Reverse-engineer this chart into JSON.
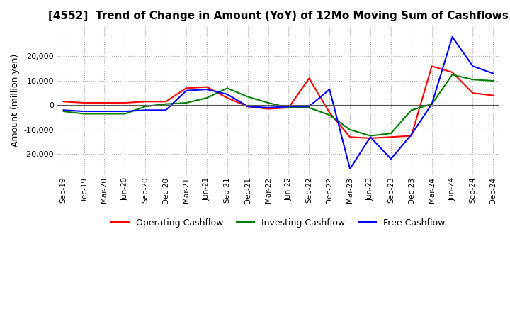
{
  "title": "[4552]  Trend of Change in Amount (YoY) of 12Mo Moving Sum of Cashflows",
  "ylabel": "Amount (million yen)",
  "x_labels": [
    "Sep-19",
    "Dec-19",
    "Mar-20",
    "Jun-20",
    "Sep-20",
    "Dec-20",
    "Mar-21",
    "Jun-21",
    "Sep-21",
    "Dec-21",
    "Mar-22",
    "Jun-22",
    "Sep-22",
    "Dec-22",
    "Mar-23",
    "Jun-23",
    "Sep-23",
    "Dec-23",
    "Mar-24",
    "Jun-24",
    "Sep-24",
    "Dec-24"
  ],
  "operating": [
    1500,
    1000,
    1000,
    1000,
    1500,
    1500,
    7000,
    7500,
    3000,
    -500,
    -1500,
    -1000,
    11000,
    -3000,
    -13000,
    -13500,
    -13000,
    -12500,
    16000,
    13500,
    5000,
    4000
  ],
  "investing": [
    -2500,
    -3500,
    -3500,
    -3500,
    -500,
    500,
    1000,
    3000,
    7000,
    3500,
    1000,
    -1000,
    -1000,
    -4000,
    -10000,
    -12500,
    -11500,
    -2000,
    500,
    12500,
    10500,
    10000
  ],
  "free": [
    -2000,
    -2500,
    -2500,
    -2500,
    -2000,
    -2000,
    6000,
    6500,
    4500,
    -500,
    -1000,
    -500,
    -500,
    6500,
    -26000,
    -13000,
    -22000,
    -12000,
    500,
    28000,
    16000,
    13000
  ],
  "ylim": [
    -28000,
    32000
  ],
  "yticks": [
    -20000,
    -10000,
    0,
    10000,
    20000
  ],
  "operating_color": "#FF0000",
  "investing_color": "#008000",
  "free_color": "#0000FF",
  "grid_color": "#AAAAAA",
  "background_color": "#FFFFFF",
  "title_fontsize": 11,
  "axis_fontsize": 9,
  "legend_fontsize": 9,
  "linewidth": 1.5
}
